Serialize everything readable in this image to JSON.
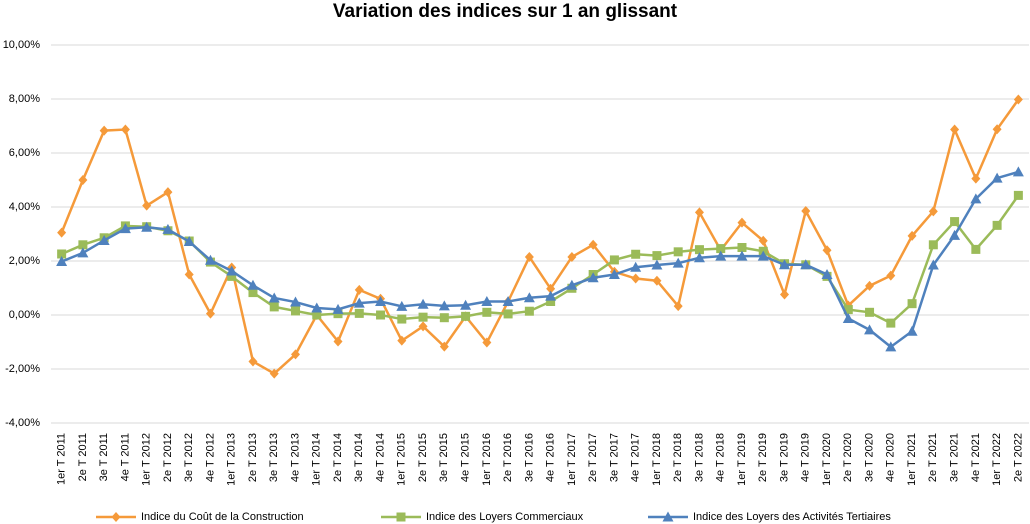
{
  "chart_data": {
    "type": "line",
    "title": "Variation des indices sur 1 an glissant",
    "categories": [
      "1er T 2011",
      "2e T 2011",
      "3e T 2011",
      "4e T 2011",
      "1er T 2012",
      "2e T 2012",
      "3e T 2012",
      "4e T 2012",
      "1er T 2013",
      "2e T 2013",
      "3e T 2013",
      "4e T 2013",
      "1er T 2014",
      "2e T 2014",
      "3e T 2014",
      "4e T 2014",
      "1er T 2015",
      "2e T 2015",
      "3e T 2015",
      "4e T 2015",
      "1er T 2016",
      "2e T 2016",
      "3e T 2016",
      "4e T 2016",
      "1er T 2017",
      "2e T 2017",
      "3e T 2017",
      "4e T 2017",
      "1er T 2018",
      "2e T 2018",
      "3e T 2018",
      "4e T 2018",
      "1er T 2019",
      "2e T 2019",
      "3e T 2019",
      "4e T 2019",
      "1er T 2020",
      "2e T 2020",
      "3e T 2020",
      "4e T 2020",
      "1er T 2021",
      "2e T 2021",
      "3e T 2021",
      "4e T 2021",
      "1er T 2022",
      "2e T 2022"
    ],
    "series": [
      {
        "name": "Indice du Coût de la Construction",
        "color": "#f59a3a",
        "marker": "diamond",
        "values": [
          3.05,
          5.0,
          6.83,
          6.87,
          4.05,
          4.55,
          1.5,
          0.05,
          1.76,
          -1.72,
          -2.17,
          -1.46,
          0.0,
          -0.98,
          0.93,
          0.6,
          -0.95,
          -0.42,
          -1.17,
          -0.05,
          -1.02,
          0.5,
          2.15,
          0.97,
          2.15,
          2.6,
          1.6,
          1.35,
          1.27,
          0.33,
          3.8,
          2.4,
          3.42,
          2.75,
          0.76,
          3.85,
          2.4,
          0.35,
          1.08,
          1.46,
          2.93,
          3.84,
          6.87,
          5.05,
          6.88,
          7.98
        ]
      },
      {
        "name": "Indice des Loyers Commerciaux",
        "color": "#9bbb59",
        "marker": "square",
        "values": [
          2.26,
          2.6,
          2.86,
          3.3,
          3.27,
          3.12,
          2.74,
          1.96,
          1.43,
          0.83,
          0.3,
          0.15,
          0.0,
          0.05,
          0.06,
          0.0,
          -0.15,
          -0.08,
          -0.1,
          -0.05,
          0.1,
          0.04,
          0.14,
          0.5,
          0.99,
          1.5,
          2.04,
          2.25,
          2.2,
          2.34,
          2.42,
          2.46,
          2.5,
          2.36,
          1.9,
          1.86,
          1.43,
          0.2,
          0.1,
          -0.3,
          0.42,
          2.6,
          3.46,
          2.43,
          3.32,
          4.43
        ]
      },
      {
        "name": "Indice des Loyers des Activités Tertiaires",
        "color": "#4f81bd",
        "marker": "triangle",
        "values": [
          1.98,
          2.3,
          2.76,
          3.2,
          3.25,
          3.17,
          2.72,
          2.03,
          1.63,
          1.1,
          0.63,
          0.48,
          0.26,
          0.21,
          0.44,
          0.5,
          0.32,
          0.4,
          0.34,
          0.36,
          0.5,
          0.5,
          0.64,
          0.7,
          1.1,
          1.38,
          1.5,
          1.77,
          1.85,
          1.92,
          2.12,
          2.18,
          2.18,
          2.18,
          1.86,
          1.86,
          1.5,
          -0.13,
          -0.55,
          -1.18,
          -0.6,
          1.85,
          2.95,
          4.3,
          5.07,
          5.3
        ]
      }
    ],
    "ylim": [
      -4,
      10
    ],
    "yticks": [
      {
        "value": -4,
        "label": "-4,00%"
      },
      {
        "value": -2,
        "label": "-2,00%"
      },
      {
        "value": 0,
        "label": "0,00%"
      },
      {
        "value": 2,
        "label": "2,00%"
      },
      {
        "value": 4,
        "label": "4,00%"
      },
      {
        "value": 6,
        "label": "6,00%"
      },
      {
        "value": 8,
        "label": "8,00%"
      },
      {
        "value": 10,
        "label": "10,00%"
      }
    ],
    "grid": true,
    "legend": "bottom"
  }
}
